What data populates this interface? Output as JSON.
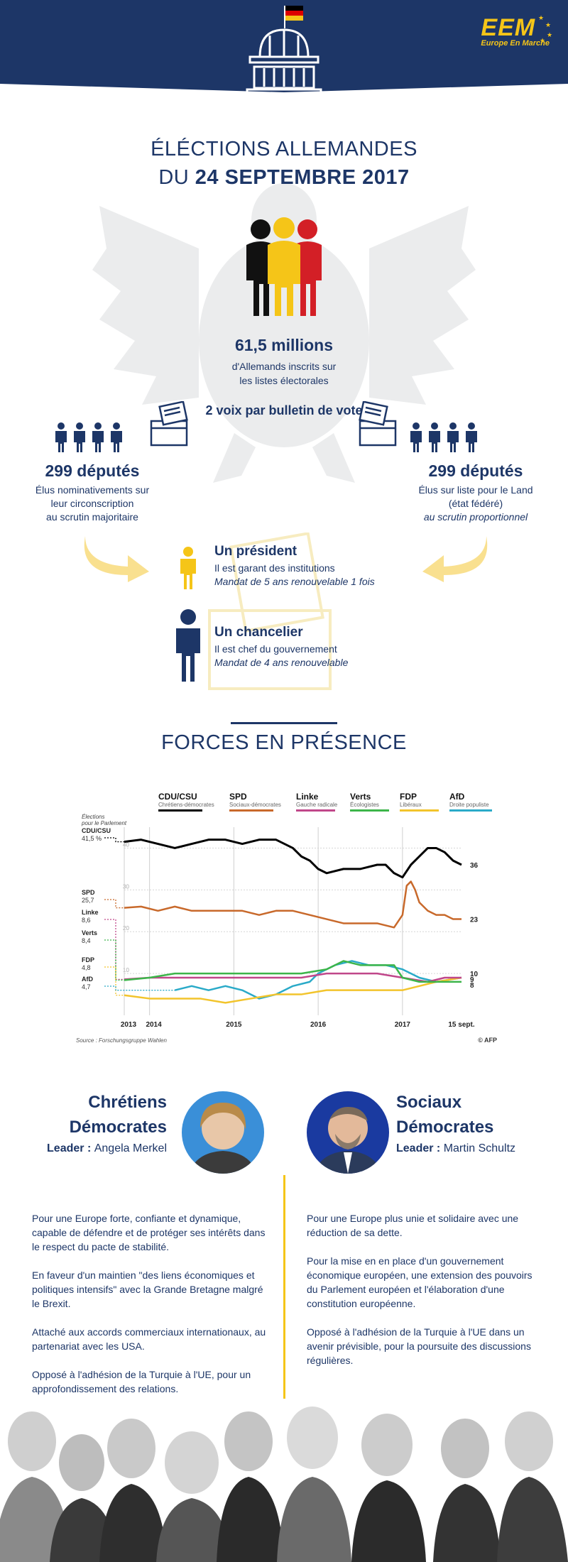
{
  "header": {
    "logo_main": "EEM",
    "logo_sub": "Europe En Marche",
    "colors": {
      "navy": "#1d3667",
      "gold": "#f5c518",
      "red": "#dd0000",
      "black": "#000000"
    },
    "icons": [
      "german-flag-icon",
      "bundestag-building-icon",
      "eu-stars-icon"
    ]
  },
  "title": {
    "line1": "ÉLÉCTIONS ALLEMANDES",
    "line2_prefix": "DU ",
    "line2_bold": "24 SEPTEMBRE 2017"
  },
  "voters": {
    "number": "61,5 millions",
    "line1": "d'Allemands inscrits sur",
    "line2": "les listes électorales"
  },
  "ballot": {
    "text": "2 voix par bulletin de vote"
  },
  "deputes_left": {
    "title": "299 députés",
    "line1": "Élus nominativements sur",
    "line2": "leur circonscription",
    "line3": "au scrutin majoritaire"
  },
  "deputes_right": {
    "title": "299 députés",
    "line1": "Élus sur liste pour le Land",
    "line2": "(état fédéré)",
    "line3": "au scrutin proportionnel"
  },
  "president": {
    "title": "Un président",
    "line1": "Il est garant des institutions",
    "line2": "Mandat de 5 ans renouvelable 1 fois"
  },
  "chancellor": {
    "title": "Un chancelier",
    "line1": "Il est chef du gouvernement",
    "line2": "Mandat de 4 ans renouvelable"
  },
  "forces": {
    "title": "FORCES EN PRÉSENCE"
  },
  "chart_data": {
    "type": "line",
    "legend": [
      {
        "name": "CDU/CSU",
        "sub": "Chrétiens-démocrates",
        "color": "#000000"
      },
      {
        "name": "SPD",
        "sub": "Sociaux-démocrates",
        "color": "#c8692b"
      },
      {
        "name": "Linke",
        "sub": "Gauche radicale",
        "color": "#c0478a"
      },
      {
        "name": "Verts",
        "sub": "Écologistes",
        "color": "#3cb54a"
      },
      {
        "name": "FDP",
        "sub": "Libéraux",
        "color": "#f2c42c"
      },
      {
        "name": "AfD",
        "sub": "Droite populiste",
        "color": "#2aaac8"
      }
    ],
    "election_label_1": "Élections",
    "election_label_2": "pour le Parlement",
    "election_results": [
      {
        "party": "CDU/CSU",
        "value": "41,5 %"
      },
      {
        "party": "SPD",
        "value": "25,7"
      },
      {
        "party": "Linke",
        "value": "8,6"
      },
      {
        "party": "Verts",
        "value": "8,4"
      },
      {
        "party": "FDP",
        "value": "4,8"
      },
      {
        "party": "AfD",
        "value": "4,7"
      }
    ],
    "end_labels": [
      "36",
      "23",
      "10",
      "9",
      "8"
    ],
    "x_ticks": [
      "2013",
      "2014",
      "2015",
      "2016",
      "2017",
      "15 sept."
    ],
    "y_ticks": [
      "40",
      "30",
      "20",
      "10"
    ],
    "ylim": [
      0,
      45
    ],
    "xlim": [
      2013.7,
      2017.7
    ],
    "source": "Source : Forschungsgruppe Wahlen",
    "credit": "© AFP",
    "series": [
      {
        "name": "CDU/CSU",
        "x": [
          2013.7,
          2013.9,
          2014.1,
          2014.3,
          2014.5,
          2014.7,
          2014.9,
          2015.1,
          2015.3,
          2015.5,
          2015.7,
          2015.8,
          2015.9,
          2016.0,
          2016.1,
          2016.3,
          2016.5,
          2016.7,
          2016.8,
          2016.9,
          2017.0,
          2017.1,
          2017.2,
          2017.3,
          2017.4,
          2017.5,
          2017.6,
          2017.7
        ],
        "y": [
          41.5,
          42,
          41,
          40,
          41,
          42,
          42,
          41,
          42,
          42,
          40,
          38,
          37,
          35,
          34,
          35,
          35,
          36,
          36,
          34,
          33,
          36,
          38,
          40,
          40,
          39,
          37,
          36
        ]
      },
      {
        "name": "SPD",
        "x": [
          2013.7,
          2013.9,
          2014.1,
          2014.3,
          2014.5,
          2014.7,
          2014.9,
          2015.1,
          2015.3,
          2015.5,
          2015.7,
          2015.9,
          2016.1,
          2016.3,
          2016.5,
          2016.7,
          2016.9,
          2017.0,
          2017.05,
          2017.1,
          2017.15,
          2017.2,
          2017.3,
          2017.4,
          2017.5,
          2017.6,
          2017.7
        ],
        "y": [
          25.7,
          26,
          25,
          26,
          25,
          25,
          25,
          25,
          24,
          25,
          25,
          24,
          23,
          22,
          22,
          22,
          21,
          24,
          31,
          32,
          30,
          27,
          25,
          24,
          24,
          23,
          23
        ]
      },
      {
        "name": "Linke",
        "x": [
          2013.7,
          2014.0,
          2014.3,
          2014.6,
          2014.9,
          2015.2,
          2015.5,
          2015.8,
          2016.1,
          2016.4,
          2016.7,
          2017.0,
          2017.3,
          2017.5,
          2017.7
        ],
        "y": [
          8.6,
          9,
          9,
          9,
          9,
          9,
          9,
          9,
          10,
          10,
          10,
          9,
          8,
          9,
          9
        ]
      },
      {
        "name": "Verts",
        "x": [
          2013.7,
          2014.0,
          2014.3,
          2014.6,
          2014.9,
          2015.2,
          2015.5,
          2015.8,
          2016.1,
          2016.3,
          2016.5,
          2016.7,
          2016.9,
          2017.0,
          2017.2,
          2017.4,
          2017.7
        ],
        "y": [
          8.4,
          9,
          10,
          10,
          10,
          10,
          10,
          10,
          11,
          13,
          12,
          12,
          12,
          9,
          8,
          8,
          8
        ]
      },
      {
        "name": "FDP",
        "x": [
          2013.7,
          2014.0,
          2014.3,
          2014.6,
          2014.9,
          2015.2,
          2015.5,
          2015.8,
          2016.1,
          2016.4,
          2016.7,
          2017.0,
          2017.2,
          2017.4,
          2017.7
        ],
        "y": [
          4.8,
          4,
          4,
          4,
          3,
          4,
          5,
          5,
          6,
          6,
          6,
          6,
          7,
          8,
          9
        ]
      },
      {
        "name": "AfD",
        "x": [
          2014.3,
          2014.5,
          2014.7,
          2014.9,
          2015.1,
          2015.3,
          2015.5,
          2015.7,
          2015.9,
          2016.0,
          2016.2,
          2016.4,
          2016.6,
          2016.8,
          2017.0,
          2017.2,
          2017.4,
          2017.7
        ],
        "y": [
          6,
          7,
          6,
          7,
          6,
          4,
          5,
          7,
          8,
          10,
          12,
          13,
          12,
          12,
          11,
          9,
          8,
          9
        ]
      }
    ]
  },
  "cdu": {
    "name_line1": "Chrétiens",
    "name_line2": "Démocrates",
    "leader_label": "Leader : ",
    "leader_name": "Angela Merkel",
    "points": [
      "Pour une Europe forte, confiante et dynamique, capable de défendre et de protéger ses intérêts dans le respect du pacte de stabilité.",
      "En faveur d'un maintien \"des liens économiques et politiques intensifs\" avec la Grande Bretagne malgré le Brexit.",
      "Attaché aux  accords commerciaux internationaux, au partenariat avec les USA.",
      "Opposé à l'adhésion de la Turquie à l'UE, pour un approfondissement des relations."
    ]
  },
  "spd": {
    "name_line1": "Sociaux",
    "name_line2": "Démocrates",
    "leader_label": "Leader : ",
    "leader_name": "Martin Schultz",
    "points": [
      "Pour une Europe plus unie et solidaire avec une réduction de sa dette.",
      "Pour la mise en en place d'un gouvernement économique européen, une extension des pouvoirs du Parlement européen et l'élaboration d'une constitution européenne.",
      "Opposé à l'adhésion de la Turquie à l'UE dans un avenir prévisible, pour la poursuite des discussions régulières."
    ]
  }
}
